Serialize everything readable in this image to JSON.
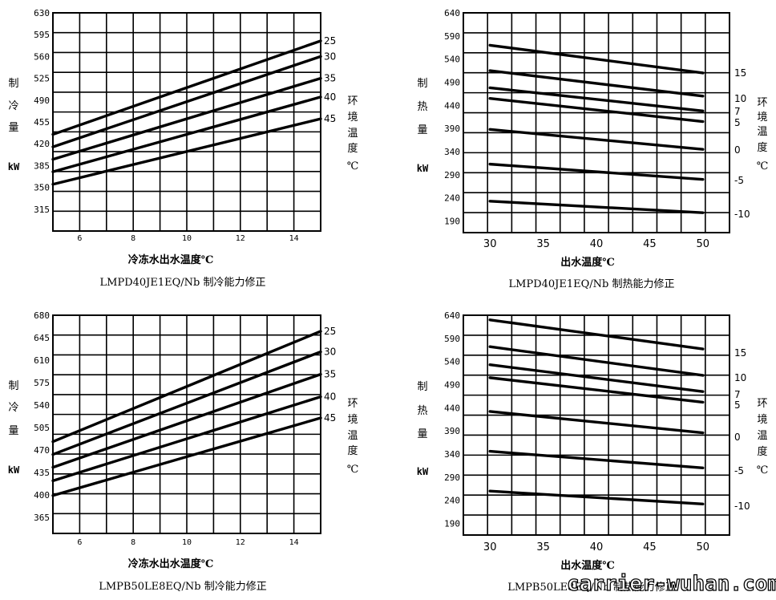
{
  "chart_data": [
    {
      "type": "line",
      "xlabel": "冷冻水出水温度℃",
      "caption": "LMPD40JE1EQ/Nb 制冷能力修正",
      "ylabel_chars": [
        "制",
        "冷",
        "量"
      ],
      "unit": "kW",
      "legend_chars": [
        "环",
        "境",
        "温",
        "度",
        "℃"
      ],
      "xlim": [
        5,
        15
      ],
      "ylim": [
        280,
        630
      ],
      "xticks": [
        6,
        8,
        10,
        12,
        14
      ],
      "yticks": [
        315,
        350,
        385,
        420,
        455,
        490,
        525,
        560,
        595,
        630
      ],
      "series": [
        {
          "name": "25",
          "x": [
            5,
            15
          ],
          "y": [
            435,
            585
          ]
        },
        {
          "name": "30",
          "x": [
            5,
            15
          ],
          "y": [
            415,
            560
          ]
        },
        {
          "name": "35",
          "x": [
            5,
            15
          ],
          "y": [
            395,
            525
          ]
        },
        {
          "name": "40",
          "x": [
            5,
            15
          ],
          "y": [
            375,
            495
          ]
        },
        {
          "name": "45",
          "x": [
            5,
            15
          ],
          "y": [
            355,
            460
          ]
        }
      ]
    },
    {
      "type": "line",
      "xlabel": "出水温度℃",
      "caption": "LMPD40JE1EQ/Nb 制热能力修正",
      "ylabel_chars": [
        "制",
        "热",
        "量"
      ],
      "unit": "kW",
      "legend_chars": [
        "环",
        "境",
        "温",
        "度",
        "℃"
      ],
      "xlim": [
        27.5,
        52.5
      ],
      "ylim": [
        165,
        640
      ],
      "xticks": [
        30,
        35,
        40,
        45,
        50
      ],
      "yticks": [
        190,
        240,
        290,
        340,
        390,
        440,
        490,
        540,
        590,
        640
      ],
      "series": [
        {
          "name": "15",
          "x": [
            30,
            50
          ],
          "y": [
            570,
            510
          ]
        },
        {
          "name": "10",
          "x": [
            30,
            50
          ],
          "y": [
            515,
            460
          ]
        },
        {
          "name": "7",
          "x": [
            30,
            50
          ],
          "y": [
            478,
            428
          ]
        },
        {
          "name": "5",
          "x": [
            30,
            50
          ],
          "y": [
            455,
            405
          ]
        },
        {
          "name": "0",
          "x": [
            30,
            50
          ],
          "y": [
            388,
            345
          ]
        },
        {
          "name": "-5",
          "x": [
            30,
            50
          ],
          "y": [
            313,
            280
          ]
        },
        {
          "name": "-10",
          "x": [
            30,
            50
          ],
          "y": [
            233,
            208
          ]
        }
      ]
    },
    {
      "type": "line",
      "xlabel": "冷冻水出水温度℃",
      "caption": "LMPB50LE8EQ/Nb 制冷能力修正",
      "ylabel_chars": [
        "制",
        "冷",
        "量"
      ],
      "unit": "kW",
      "legend_chars": [
        "环",
        "境",
        "温",
        "度",
        "℃"
      ],
      "xlim": [
        5,
        15
      ],
      "ylim": [
        340,
        680
      ],
      "xticks": [
        6,
        8,
        10,
        12,
        14
      ],
      "yticks": [
        365,
        400,
        435,
        470,
        505,
        540,
        575,
        610,
        645,
        680
      ],
      "series": [
        {
          "name": "25",
          "x": [
            5,
            15
          ],
          "y": [
            483,
            655
          ]
        },
        {
          "name": "30",
          "x": [
            5,
            15
          ],
          "y": [
            463,
            623
          ]
        },
        {
          "name": "35",
          "x": [
            5,
            15
          ],
          "y": [
            443,
            588
          ]
        },
        {
          "name": "40",
          "x": [
            5,
            15
          ],
          "y": [
            422,
            553
          ]
        },
        {
          "name": "45",
          "x": [
            5,
            15
          ],
          "y": [
            399,
            520
          ]
        }
      ]
    },
    {
      "type": "line",
      "xlabel": "出水温度℃",
      "caption": "LMPB50LE8EQ/Nb 制热能力修正",
      "ylabel_chars": [
        "制",
        "热",
        "量"
      ],
      "unit": "kW",
      "legend_chars": [
        "环",
        "境",
        "温",
        "度",
        "℃"
      ],
      "xlim": [
        27.5,
        52.5
      ],
      "ylim": [
        165,
        640
      ],
      "xticks": [
        30,
        35,
        40,
        45,
        50
      ],
      "yticks": [
        190,
        240,
        290,
        340,
        390,
        440,
        490,
        540,
        590,
        640
      ],
      "series": [
        {
          "name": "",
          "x": [
            30,
            50
          ],
          "y": [
            630,
            567
          ]
        },
        {
          "name": "15",
          "x": [
            30,
            50
          ],
          "y": [
            572,
            510
          ]
        },
        {
          "name": "10",
          "x": [
            30,
            50
          ],
          "y": [
            533,
            475
          ]
        },
        {
          "name": "7",
          "x": [
            30,
            50
          ],
          "y": [
            505,
            452
          ]
        },
        {
          "name": "5",
          "x": [
            30,
            50
          ],
          "y": [
            432,
            386
          ]
        },
        {
          "name": "0",
          "x": [
            30,
            50
          ],
          "y": [
            346,
            310
          ]
        },
        {
          "name": "-5",
          "x": [
            30,
            50
          ],
          "y": [
            260,
            232
          ]
        },
        {
          "name": "-10",
          "x": [],
          "y": []
        }
      ]
    }
  ],
  "watermark": "carrier-wuhan.com"
}
